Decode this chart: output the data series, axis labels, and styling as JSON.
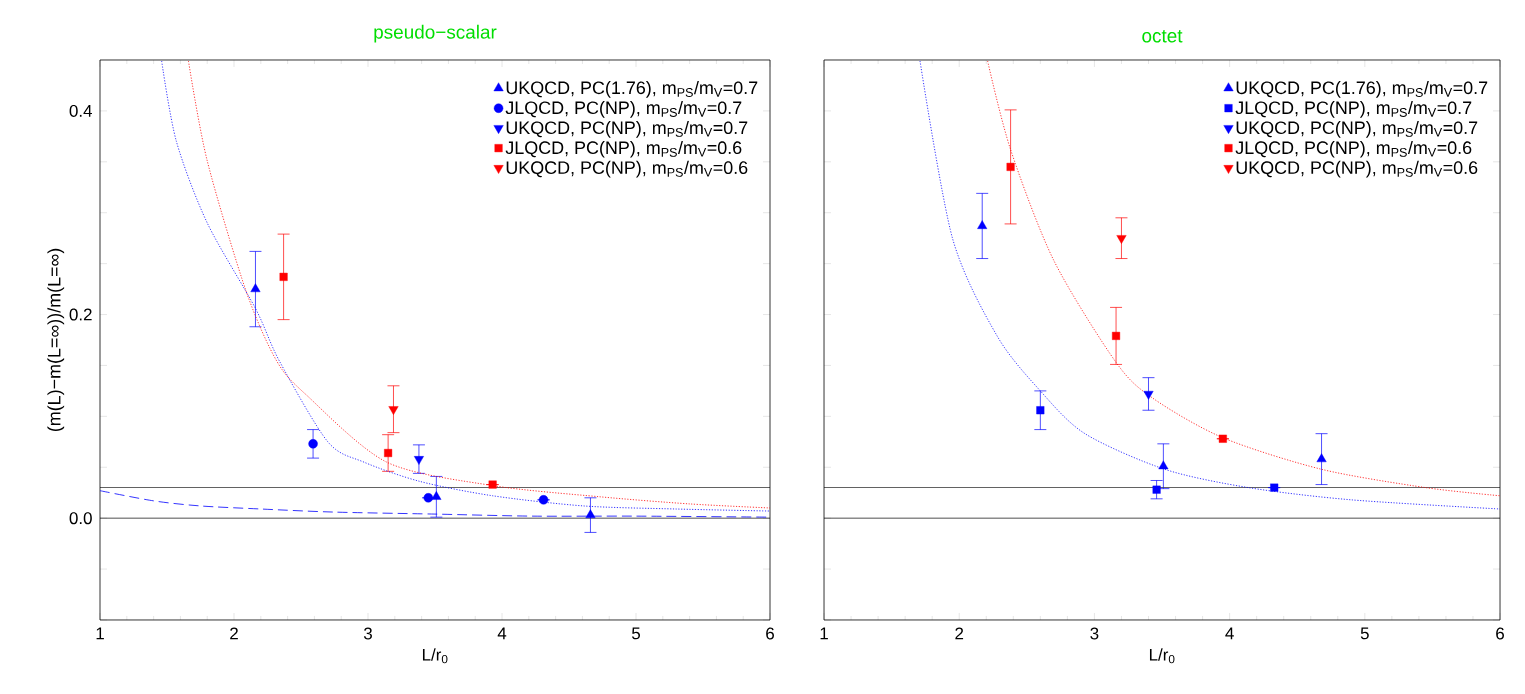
{
  "chart_data": [
    {
      "type": "scatter",
      "title": "pseudo−scalar",
      "xlabel": "L/r$_{0}$",
      "ylabel": "(m(L)−m(L=∞))/m(L=∞)",
      "xlim": [
        1,
        6
      ],
      "xticks": [
        1,
        2,
        3,
        4,
        5,
        6
      ],
      "ylim": [
        -0.1,
        0.45
      ],
      "yticks": [
        {
          "value": -0.1,
          "label": null
        },
        {
          "value": -0.05,
          "label": null
        },
        {
          "value": 0,
          "label": "0.0"
        },
        {
          "value": 0.05,
          "label": null
        },
        {
          "value": 0.1,
          "label": null
        },
        {
          "value": 0.15,
          "label": null
        },
        {
          "value": 0.2,
          "label": "0.2"
        },
        {
          "value": 0.25,
          "label": null
        },
        {
          "value": 0.3,
          "label": null
        },
        {
          "value": 0.35,
          "label": null
        },
        {
          "value": 0.4,
          "label": "0.4"
        }
      ],
      "legend": "top right",
      "ref_lines": [
        {
          "axis": "y",
          "value": 0,
          "color": "#000000"
        },
        {
          "axis": "y",
          "value": 0.03,
          "color": "#000000"
        }
      ],
      "series": [
        {
          "name": "UKQCD, PC(1.76), m$_{PS}$/m$_{V}$=0.7",
          "color": "#0000ff",
          "marker": "triangle",
          "x": [
            2.16,
            3.51,
            4.66
          ],
          "values": [
            0.225,
            0.021,
            0.003
          ],
          "errors": [
            0.037,
            0.02,
            0.017
          ]
        },
        {
          "name": "JLQCD, PC(NP), m$_{PS}$/m$_{V}$=0.7",
          "color": "#0000ff",
          "marker": "circle",
          "x": [
            2.59,
            3.45,
            4.31
          ],
          "values": [
            0.073,
            0.02,
            0.018
          ],
          "errors": [
            0.014,
            null,
            null
          ]
        },
        {
          "name": "UKQCD, PC(NP), m$_{PS}$/m$_{V}$=0.7",
          "color": "#0000ff",
          "marker": "triangle-down",
          "x": [
            3.38
          ],
          "values": [
            0.058
          ],
          "errors": [
            0.014
          ]
        },
        {
          "name": "JLQCD, PC(NP), m$_{PS}$/m$_{V}$=0.6",
          "color": "#ff0000",
          "marker": "square",
          "x": [
            2.37,
            3.15,
            3.93
          ],
          "values": [
            0.237,
            0.064,
            0.033
          ],
          "errors": [
            0.042,
            0.018,
            null
          ]
        },
        {
          "name": "UKQCD, PC(NP), m$_{PS}$/m$_{V}$=0.6",
          "color": "#ff0000",
          "marker": "triangle-down",
          "x": [
            3.19
          ],
          "values": [
            0.107
          ],
          "errors": [
            0.023
          ]
        },
        {
          "type": "line",
          "color": "#0000ff",
          "line_style": "dotted",
          "marker": "none",
          "x": [
            1.46,
            1.57,
            1.8,
            2.16,
            2.34,
            2.7,
            2.97,
            3.39,
            3.93,
            4.61,
            5.3,
            6
          ],
          "values": [
            0.449,
            0.37,
            0.29,
            0.206,
            0.154,
            0.075,
            0.055,
            0.036,
            0.022,
            0.012,
            0.009,
            0.007
          ]
        },
        {
          "type": "line",
          "color": "#ff0000",
          "line_style": "dotted",
          "marker": "none",
          "x": [
            1.66,
            1.8,
            2.09,
            2.32,
            2.54,
            3.14,
            3.93,
            4.73,
            5.4,
            6
          ],
          "values": [
            0.449,
            0.351,
            0.223,
            0.154,
            0.121,
            0.055,
            0.032,
            0.021,
            0.014,
            0.01
          ]
        },
        {
          "type": "line",
          "color": "#0000ff",
          "line_style": "dashed",
          "marker": "none",
          "x": [
            1,
            1.4,
            1.75,
            2.2,
            2.74,
            3.5,
            4.23,
            5,
            6
          ],
          "values": [
            0.027,
            0.017,
            0.012,
            0.009,
            0.006,
            0.004,
            0.002,
            0.002,
            0.001
          ]
        }
      ]
    },
    {
      "type": "scatter",
      "title": "octet",
      "xlabel": "L/r$_{0}$",
      "xlim": [
        1,
        6
      ],
      "xticks": [
        1,
        2,
        3,
        4,
        5,
        6
      ],
      "ylim": [
        -0.1,
        0.45
      ],
      "yticks": [
        {
          "value": -0.1,
          "label": null
        },
        {
          "value": -0.05,
          "label": null
        },
        {
          "value": 0,
          "label": null
        },
        {
          "value": 0.05,
          "label": null
        },
        {
          "value": 0.1,
          "label": null
        },
        {
          "value": 0.15,
          "label": null
        },
        {
          "value": 0.2,
          "label": null
        },
        {
          "value": 0.25,
          "label": null
        },
        {
          "value": 0.3,
          "label": null
        },
        {
          "value": 0.35,
          "label": null
        },
        {
          "value": 0.4,
          "label": null
        }
      ],
      "tick_labels": "x",
      "legend": "top right",
      "ref_lines": [
        {
          "axis": "y",
          "value": 0,
          "color": "#000000"
        },
        {
          "axis": "y",
          "value": 0.03,
          "color": "#000000"
        }
      ],
      "series": [
        {
          "name": "UKQCD, PC(1.76), m$_{PS}$/m$_{V}$=0.7",
          "color": "#0000ff",
          "marker": "triangle",
          "x": [
            2.17,
            3.51,
            4.68
          ],
          "values": [
            0.287,
            0.051,
            0.058
          ],
          "errors": [
            0.032,
            0.022,
            0.025
          ]
        },
        {
          "name": "JLQCD, PC(NP), m$_{PS}$/m$_{V}$=0.7",
          "color": "#0000ff",
          "marker": "square",
          "x": [
            2.6,
            3.46,
            4.33
          ],
          "values": [
            0.106,
            0.028,
            0.03
          ],
          "errors": [
            0.019,
            0.009,
            null
          ]
        },
        {
          "name": "UKQCD, PC(NP), m$_{PS}$/m$_{V}$=0.7",
          "color": "#0000ff",
          "marker": "triangle-down",
          "x": [
            3.4
          ],
          "values": [
            0.122
          ],
          "errors": [
            0.016
          ]
        },
        {
          "name": "JLQCD, PC(NP), m$_{PS}$/m$_{V}$=0.6",
          "color": "#ff0000",
          "marker": "square",
          "x": [
            2.38,
            3.16,
            3.95
          ],
          "values": [
            0.345,
            0.179,
            0.078
          ],
          "errors": [
            0.056,
            0.028,
            null
          ]
        },
        {
          "name": "UKQCD, PC(NP), m$_{PS}$/m$_{V}$=0.6",
          "color": "#ff0000",
          "marker": "triangle-down",
          "x": [
            3.2
          ],
          "values": [
            0.275
          ],
          "errors": [
            0.02
          ]
        },
        {
          "type": "line",
          "color": "#0000ff",
          "line_style": "dotted",
          "marker": "none",
          "x": [
            1.71,
            1.95,
            2.28,
            2.6,
            2.93,
            3.52,
            4.14,
            4.9,
            6
          ],
          "values": [
            0.449,
            0.275,
            0.179,
            0.125,
            0.083,
            0.048,
            0.03,
            0.018,
            0.009
          ]
        },
        {
          "type": "line",
          "color": "#ff0000",
          "line_style": "dotted",
          "marker": "none",
          "x": [
            2.21,
            2.38,
            2.7,
            3.16,
            3.43,
            3.95,
            4.68,
            5.45,
            6
          ],
          "values": [
            0.449,
            0.362,
            0.253,
            0.153,
            0.118,
            0.079,
            0.048,
            0.03,
            0.022
          ]
        }
      ]
    }
  ]
}
